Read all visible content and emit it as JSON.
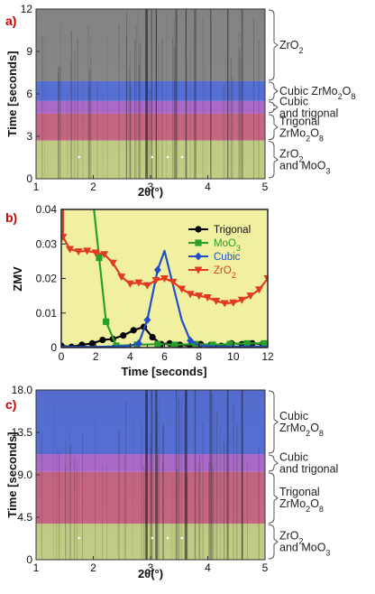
{
  "chart_data": [
    {
      "id": "a",
      "panel_label": "a)",
      "type": "heatmap",
      "xlabel": "2θ(°)",
      "ylabel": "Time [seconds]",
      "xlim": [
        1,
        5
      ],
      "ylim": [
        0,
        12
      ],
      "xticks": [
        "1",
        "2",
        "3",
        "4",
        "5"
      ],
      "yticks": [
        "0",
        "3",
        "6",
        "9",
        "12"
      ],
      "phase_regions": [
        {
          "label": "ZrO2",
          "from": 6.9,
          "to": 12,
          "color": "#808080"
        },
        {
          "label": "Cubic ZrMo2O8",
          "from": 5.5,
          "to": 6.9,
          "color": "#4a66d6"
        },
        {
          "label": "Cubic and trigonal",
          "from": 4.6,
          "to": 5.5,
          "color": "#a860c8"
        },
        {
          "label": "Trigonal ZrMo2O8",
          "from": 2.7,
          "to": 4.6,
          "color": "#c25a78"
        },
        {
          "label": "ZrO2 and MoO3",
          "from": 0,
          "to": 2.7,
          "color": "#bcc87a"
        }
      ],
      "region_text": [
        [
          "ZrO",
          "2",
          ""
        ],
        [
          "Cubic ZrMo",
          "2",
          "O",
          "8"
        ],
        [
          "Cubic",
          "and trigonal"
        ],
        [
          "Trigonal",
          "ZrMo",
          "2",
          "O",
          "8"
        ],
        [
          "ZrO",
          "2",
          "and MoO",
          "3"
        ]
      ]
    },
    {
      "id": "b",
      "panel_label": "b)",
      "type": "line",
      "xlabel": "Time [seconds]",
      "ylabel": "ZMV",
      "xlim": [
        0,
        12
      ],
      "ylim": [
        0,
        0.04
      ],
      "xticks": [
        "0",
        "2",
        "4",
        "6",
        "8",
        "10",
        "12"
      ],
      "yticks": [
        "0",
        "0.01",
        "0.02",
        "0.03",
        "0.04"
      ],
      "legend_position": "top-right",
      "series": [
        {
          "name": "Trigonal",
          "color": "#000000",
          "marker": "circle",
          "x": [
            0,
            0.6,
            1.2,
            1.8,
            2.4,
            3.0,
            3.6,
            4.2,
            4.8,
            5.3,
            5.8,
            6.3,
            6.9,
            7.5,
            8.1,
            8.7,
            9.3,
            9.9,
            10.5,
            11.1,
            11.7
          ],
          "y": [
            0.0005,
            0.0002,
            0.0008,
            0.0012,
            0.0022,
            0.0025,
            0.0035,
            0.005,
            0.006,
            0.003,
            0.001,
            0.0012,
            0.0008,
            0.0005,
            0.001,
            0.0008,
            0.0005,
            0.0012,
            0.001,
            0.0012,
            0.001
          ]
        },
        {
          "name": "MoO3",
          "color": "#2aa02a",
          "marker": "square",
          "x": [
            1.9,
            2.2,
            2.6,
            3.2,
            4.4,
            5.6,
            6.6,
            7.8,
            8.8,
            9.8,
            10.8,
            11.8
          ],
          "y": [
            0.04,
            0.026,
            0.0075,
            0.0005,
            0.0008,
            0.001,
            0.0008,
            0.001,
            0.0008,
            0.001,
            0.0012,
            0.0012
          ]
        },
        {
          "name": "Cubic",
          "color": "#1f4fc8",
          "marker": "diamond",
          "x": [
            0,
            1.0,
            2.0,
            3.0,
            4.0,
            4.5,
            5.0,
            5.6,
            6.0,
            6.5,
            7.0,
            7.5,
            8.0,
            9.0,
            10.0,
            11.0,
            12.0
          ],
          "y": [
            0.0002,
            0.0002,
            0.0002,
            0.0003,
            0.0005,
            0.0012,
            0.008,
            0.0225,
            0.028,
            0.018,
            0.008,
            0.002,
            0.0006,
            0.0003,
            0.0003,
            0.0003,
            0.0003
          ],
          "markers_at": [
            4.5,
            5.0,
            5.6,
            7.5
          ]
        },
        {
          "name": "ZrO2",
          "color": "#e03a20",
          "marker": "triangle-down",
          "x": [
            0.1,
            0.5,
            1.0,
            1.5,
            2.0,
            2.5,
            3.0,
            3.5,
            4.0,
            4.5,
            5.0,
            5.5,
            6.0,
            6.5,
            7.0,
            7.5,
            8.0,
            8.5,
            9.0,
            9.5,
            10.0,
            10.5,
            11.0,
            11.5,
            12.0
          ],
          "y": [
            0.032,
            0.0285,
            0.0278,
            0.028,
            0.0275,
            0.027,
            0.0245,
            0.0205,
            0.0185,
            0.0188,
            0.018,
            0.0195,
            0.02,
            0.019,
            0.017,
            0.0155,
            0.015,
            0.0145,
            0.0135,
            0.0128,
            0.013,
            0.0138,
            0.015,
            0.0168,
            0.02
          ]
        }
      ],
      "legend_text": [
        [
          "Trigonal"
        ],
        [
          "MoO",
          "3"
        ],
        [
          "Cubic"
        ],
        [
          "ZrO",
          "2"
        ]
      ]
    },
    {
      "id": "c",
      "panel_label": "c)",
      "type": "heatmap",
      "xlabel": "2θ(°)",
      "ylabel": "Time [seconds]",
      "xlim": [
        1,
        5
      ],
      "ylim": [
        0,
        18
      ],
      "xticks": [
        "1",
        "2",
        "3",
        "4",
        "5"
      ],
      "yticks": [
        "0",
        "4.5",
        "9.0",
        "13.5",
        "18.0"
      ],
      "phase_regions": [
        {
          "label": "Cubic ZrMo2O8",
          "from": 11.2,
          "to": 18,
          "color": "#4a66d6"
        },
        {
          "label": "Cubic and trigonal",
          "from": 9.3,
          "to": 11.2,
          "color": "#a860c8"
        },
        {
          "label": "Trigonal ZrMo2O8",
          "from": 3.8,
          "to": 9.3,
          "color": "#c25a78"
        },
        {
          "label": "ZrO2 and MoO3",
          "from": 0,
          "to": 3.8,
          "color": "#bcc87a"
        }
      ],
      "region_text": [
        [
          "Cubic",
          "ZrMo",
          "2",
          "O",
          "8"
        ],
        [
          "Cubic",
          "and trigonal"
        ],
        [
          "Trigonal",
          "ZrMo",
          "2",
          "O",
          "8"
        ],
        [
          "ZrO",
          "2",
          "and MoO",
          "3"
        ]
      ]
    }
  ]
}
